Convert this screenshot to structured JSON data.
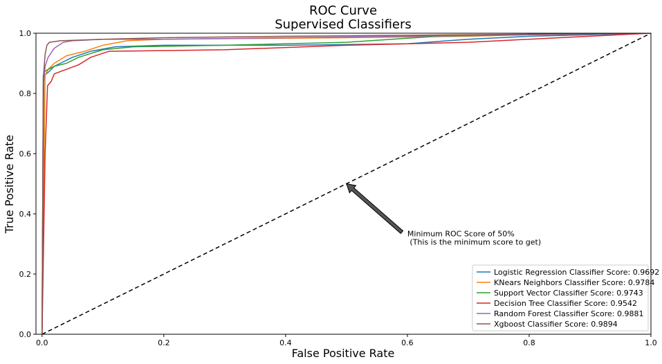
{
  "chart_data": {
    "type": "line",
    "title_line1": "ROC Curve",
    "title_line2": "Supervised Classifiers",
    "xlabel": "False Positive Rate",
    "ylabel": "True Positive Rate",
    "xlim": [
      -0.01,
      1.0
    ],
    "ylim": [
      0.0,
      1.0
    ],
    "xticks": [
      0.0,
      0.2,
      0.4,
      0.6,
      0.8,
      1.0
    ],
    "yticks": [
      0.0,
      0.2,
      0.4,
      0.6,
      0.8,
      1.0
    ],
    "xtick_labels": [
      "0.0",
      "0.2",
      "0.4",
      "0.6",
      "0.8",
      "1.0"
    ],
    "ytick_labels": [
      "0.0",
      "0.2",
      "0.4",
      "0.6",
      "0.8",
      "1.0"
    ],
    "grid": false,
    "legend_position": "lower-right",
    "diagonal": {
      "x": [
        0,
        1
      ],
      "y": [
        0,
        1
      ],
      "color": "#000000",
      "style": "dashed"
    },
    "annotation": {
      "line1": "Minimum ROC Score of 50%",
      "line2": " (This is the minimum score to get)",
      "text_at": [
        0.6,
        0.3
      ],
      "arrow_to": [
        0.5,
        0.5
      ],
      "arrow_color": "#555555"
    },
    "series": [
      {
        "name": "Logistic Regression Classifier Score: 0.9692",
        "color": "#1f77b4",
        "x": [
          0,
          0.002,
          0.004,
          0.01,
          0.02,
          0.03,
          0.05,
          0.08,
          0.12,
          0.2,
          0.4,
          0.6,
          0.7,
          0.8,
          0.9,
          1.0
        ],
        "y": [
          0,
          0.86,
          0.86,
          0.87,
          0.89,
          0.9,
          0.92,
          0.94,
          0.955,
          0.96,
          0.96,
          0.965,
          0.98,
          0.99,
          0.995,
          1.0
        ]
      },
      {
        "name": "KNears Neighbors Classifier Score: 0.9784",
        "color": "#ff7f0e",
        "x": [
          0,
          0.005,
          0.01,
          0.02,
          0.04,
          0.07,
          0.1,
          0.14,
          0.2,
          0.5,
          0.7,
          0.8,
          1.0
        ],
        "y": [
          0,
          0.86,
          0.88,
          0.9,
          0.925,
          0.94,
          0.96,
          0.975,
          0.98,
          0.985,
          0.99,
          0.995,
          1.0
        ]
      },
      {
        "name": "Support Vector Classifier Score: 0.9743",
        "color": "#2ca02c",
        "x": [
          0,
          0.003,
          0.006,
          0.01,
          0.02,
          0.04,
          0.06,
          0.1,
          0.15,
          0.3,
          0.5,
          0.65,
          0.8,
          1.0
        ],
        "y": [
          0,
          0.87,
          0.875,
          0.88,
          0.89,
          0.9,
          0.92,
          0.945,
          0.955,
          0.96,
          0.97,
          0.99,
          0.995,
          1.0
        ]
      },
      {
        "name": "Decision Tree Classifier Score: 0.9542",
        "color": "#d62728",
        "x": [
          0,
          0.005,
          0.009,
          0.015,
          0.02,
          0.04,
          0.06,
          0.08,
          0.11,
          0.3,
          0.5,
          0.7,
          0.85,
          1.0
        ],
        "y": [
          0,
          0.6,
          0.825,
          0.84,
          0.865,
          0.88,
          0.895,
          0.92,
          0.94,
          0.945,
          0.96,
          0.97,
          0.985,
          1.0
        ]
      },
      {
        "name": "Random Forest Classifier Score: 0.9881",
        "color": "#9467bd",
        "x": [
          0,
          0.002,
          0.005,
          0.01,
          0.02,
          0.035,
          0.05,
          0.1,
          0.2,
          0.4,
          0.6,
          0.8,
          1.0
        ],
        "y": [
          0,
          0.82,
          0.89,
          0.92,
          0.95,
          0.97,
          0.975,
          0.98,
          0.98,
          0.985,
          0.99,
          0.995,
          1.0
        ]
      },
      {
        "name": "Xgboost Classifier Score: 0.9894",
        "color": "#8c564b",
        "x": [
          0,
          0.002,
          0.005,
          0.008,
          0.012,
          0.03,
          0.1,
          0.2,
          0.4,
          0.6,
          0.8,
          1.0
        ],
        "y": [
          0,
          0.85,
          0.93,
          0.96,
          0.97,
          0.975,
          0.98,
          0.985,
          0.99,
          0.993,
          0.997,
          1.0
        ]
      }
    ]
  }
}
